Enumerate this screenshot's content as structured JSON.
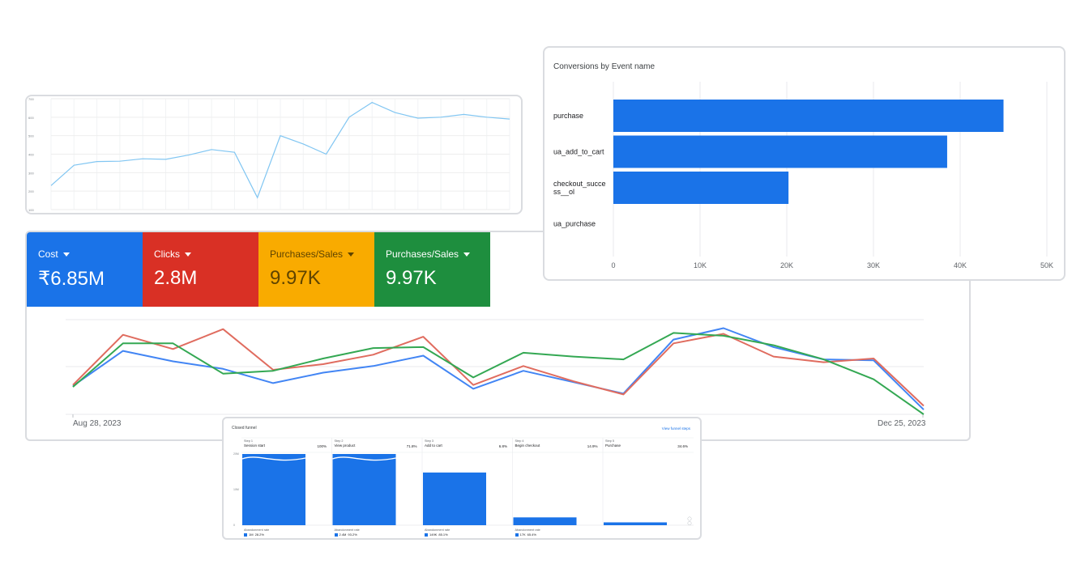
{
  "small_line": {
    "y_ticks": [
      "700",
      "600",
      "500",
      "400",
      "300",
      "200",
      "100"
    ],
    "ylim": [
      100,
      700
    ],
    "values": [
      230,
      340,
      360,
      362,
      375,
      372,
      395,
      425,
      410,
      165,
      500,
      455,
      400,
      600,
      680,
      625,
      595,
      600,
      615,
      600,
      590
    ],
    "color": "#81c6f2"
  },
  "ads": {
    "metrics": [
      {
        "label": "Cost",
        "value": "₹6.85M",
        "color": "#1a73e8"
      },
      {
        "label": "Clicks",
        "value": "2.8M",
        "color": "#d93025"
      },
      {
        "label": "Purchases/Sales",
        "value": "9.97K",
        "color": "#f9ab00"
      },
      {
        "label": "Purchases/Sales",
        "value": "9.97K",
        "color": "#1e8e3e"
      }
    ],
    "start_date": "Aug 28, 2023",
    "end_date": "Dec 25, 2023",
    "ylim": [
      0,
      100
    ],
    "series": [
      {
        "color": "#4285f4",
        "values": [
          30,
          67,
          56,
          48,
          33,
          44,
          51,
          62,
          27,
          46,
          34,
          22,
          79,
          91,
          71,
          58,
          57,
          5
        ]
      },
      {
        "color": "#e06c5f",
        "values": [
          31,
          84,
          69,
          90,
          47,
          53,
          63,
          82,
          31,
          51,
          35,
          21,
          75,
          85,
          61,
          55,
          59,
          9
        ]
      },
      {
        "color": "#34a853",
        "values": [
          29,
          75,
          75,
          43,
          46,
          59,
          70,
          71,
          39,
          65,
          61,
          58,
          86,
          83,
          73,
          58,
          37,
          0
        ]
      }
    ]
  },
  "conversions": {
    "title": "Conversions by Event name",
    "chart_data": {
      "type": "bar",
      "orientation": "horizontal",
      "title": "Conversions by Event name",
      "categories": [
        "purchase",
        "ua_add_to_cart",
        "checkout_succe ss__ol",
        "ua_purchase"
      ],
      "category_lines": [
        [
          "purchase"
        ],
        [
          "ua_add_to_cart"
        ],
        [
          "checkout_succe",
          "ss__ol"
        ],
        [
          "ua_purchase"
        ]
      ],
      "values": [
        45000,
        38500,
        20200,
        0
      ],
      "x_ticks": [
        "0",
        "10K",
        "20K",
        "30K",
        "40K",
        "50K"
      ],
      "xlim": [
        0,
        50000
      ],
      "bar_color": "#1a73e8",
      "grid": true
    }
  },
  "funnel": {
    "title": "Closed funnel",
    "link_label": "View funnel steps",
    "y_ticks": [
      "20M",
      "10M",
      "0"
    ],
    "steps": [
      {
        "step": "Step 1",
        "name": "Session start",
        "pct": "100%",
        "bar": 1.0,
        "wavy": true,
        "abandon_label": "Abandonment rate",
        "abandon_value": "1M",
        "abandon_pct": "28.2%"
      },
      {
        "step": "Step 2",
        "name": "View product",
        "pct": "71.8%",
        "bar": 1.0,
        "wavy": true,
        "abandon_label": "Abandonment rate",
        "abandon_value": "2.4M",
        "abandon_pct": "93.2%"
      },
      {
        "step": "Step 3",
        "name": "Add to cart",
        "pct": "6.8%",
        "bar": 0.74,
        "wavy": false,
        "abandon_label": "Abandonment rate",
        "abandon_value": "149K",
        "abandon_pct": "85.1%"
      },
      {
        "step": "Step 4",
        "name": "Begin checkout",
        "pct": "14.9%",
        "bar": 0.11,
        "wavy": false,
        "abandon_label": "Abandonment rate",
        "abandon_value": "17K",
        "abandon_pct": "65.4%"
      },
      {
        "step": "Step 5",
        "name": "Purchase",
        "pct": "34.6%",
        "bar": 0.04,
        "wavy": false
      }
    ]
  }
}
